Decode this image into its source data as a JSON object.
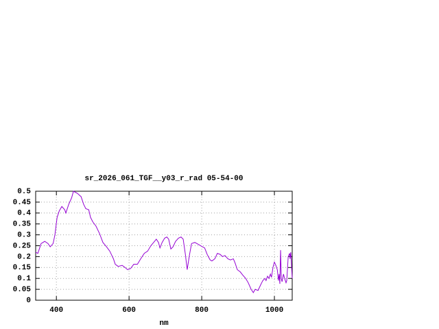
{
  "chart_data": {
    "type": "line",
    "title": "sr_2026_061_TGF__y03_r_rad 05-54-00",
    "xlabel": "nm",
    "x": [
      343,
      349,
      358,
      368,
      377,
      383,
      391,
      396,
      402,
      408,
      415,
      423,
      426,
      434,
      442,
      447,
      458,
      468,
      475,
      481,
      489,
      494,
      500,
      509,
      519,
      528,
      538,
      547,
      557,
      562,
      570,
      581,
      589,
      596,
      604,
      613,
      623,
      632,
      642,
      651,
      660,
      670,
      675,
      681,
      685,
      691,
      698,
      704,
      709,
      715,
      721,
      728,
      736,
      743,
      749,
      755,
      760,
      766,
      772,
      781,
      792,
      802,
      808,
      815,
      823,
      828,
      836,
      843,
      851,
      857,
      864,
      872,
      879,
      887,
      892,
      898,
      906,
      913,
      921,
      928,
      936,
      942,
      947,
      955,
      962,
      968,
      974,
      977,
      981,
      985,
      989,
      992,
      996,
      1000,
      1004,
      1008,
      1011,
      1013,
      1015,
      1017,
      1019,
      1021,
      1025,
      1028,
      1032,
      1034,
      1038,
      1042,
      1043,
      1045,
      1049
    ],
    "series": [
      {
        "color": "#9400d3",
        "values": [
          0.22,
          0.215,
          0.26,
          0.27,
          0.26,
          0.245,
          0.26,
          0.3,
          0.38,
          0.41,
          0.43,
          0.415,
          0.4,
          0.44,
          0.47,
          0.5,
          0.49,
          0.475,
          0.44,
          0.42,
          0.415,
          0.38,
          0.36,
          0.34,
          0.305,
          0.265,
          0.245,
          0.225,
          0.19,
          0.165,
          0.155,
          0.16,
          0.15,
          0.14,
          0.145,
          0.165,
          0.165,
          0.19,
          0.215,
          0.225,
          0.25,
          0.27,
          0.28,
          0.265,
          0.24,
          0.265,
          0.285,
          0.29,
          0.28,
          0.235,
          0.245,
          0.27,
          0.285,
          0.29,
          0.28,
          0.21,
          0.14,
          0.205,
          0.26,
          0.265,
          0.255,
          0.245,
          0.24,
          0.21,
          0.185,
          0.18,
          0.19,
          0.215,
          0.21,
          0.2,
          0.205,
          0.19,
          0.185,
          0.19,
          0.17,
          0.14,
          0.13,
          0.115,
          0.1,
          0.08,
          0.05,
          0.035,
          0.05,
          0.045,
          0.07,
          0.09,
          0.1,
          0.09,
          0.11,
          0.1,
          0.12,
          0.105,
          0.15,
          0.175,
          0.16,
          0.14,
          0.09,
          0.12,
          0.075,
          0.23,
          0.1,
          0.085,
          0.12,
          0.1,
          0.08,
          0.09,
          0.2,
          0.215,
          0.19,
          0.22,
          0.1
        ]
      }
    ],
    "xlim": [
      343,
      1049
    ],
    "xticks": [
      400,
      600,
      800,
      1000
    ],
    "ylim": [
      0,
      0.5
    ],
    "yticks": [
      0,
      0.05,
      0.1,
      0.15,
      0.2,
      0.25,
      0.3,
      0.35,
      0.4,
      0.45,
      0.5
    ],
    "grid": true
  }
}
